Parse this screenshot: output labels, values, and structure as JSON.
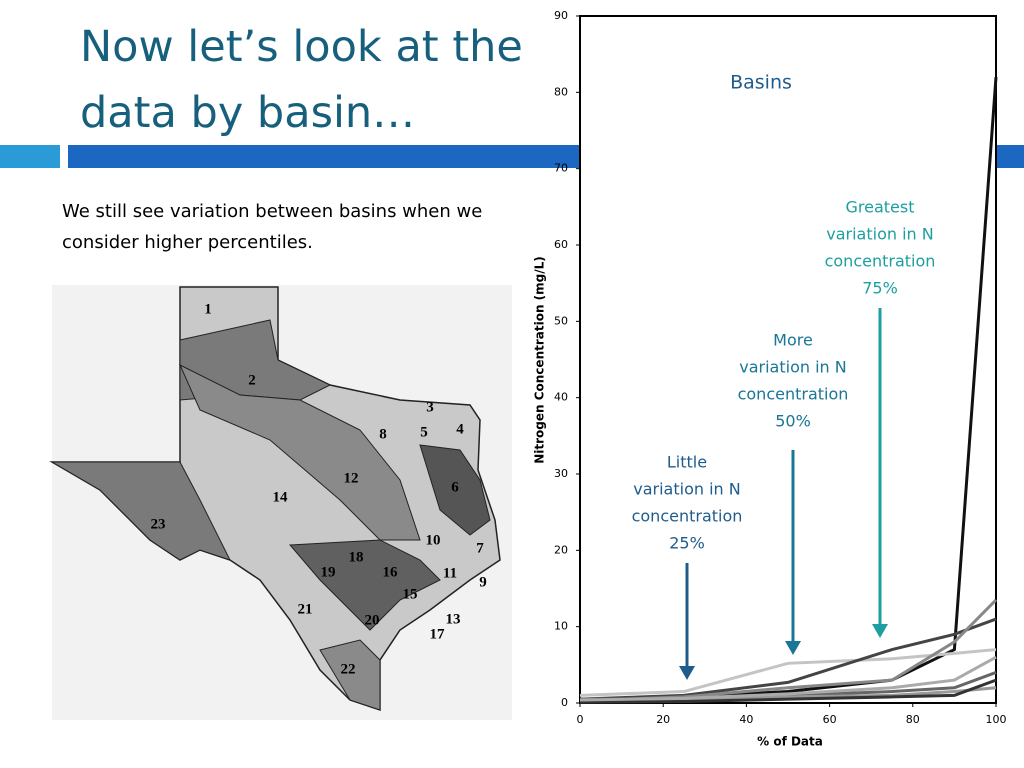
{
  "slide": {
    "title": "Now let’s look at the data by basin…",
    "body": "We still see variation between basins when we consider higher percentiles.",
    "map": {
      "labels": [
        "1",
        "2",
        "3",
        "4",
        "5",
        "6",
        "7",
        "8",
        "9",
        "10",
        "11",
        "12",
        "13",
        "14",
        "15",
        "16",
        "17",
        "18",
        "19",
        "20",
        "21",
        "22",
        "23"
      ]
    }
  },
  "chart_data": {
    "type": "line",
    "title": "Basins",
    "x_label": "% of Data",
    "y_label": "Nitrogen Concentration (mg/L)",
    "x": [
      0,
      25,
      50,
      75,
      90,
      100
    ],
    "series": [
      {
        "color": "#111111",
        "values": [
          0.3,
          0.8,
          1.5,
          3,
          7,
          82
        ]
      },
      {
        "color": "#c4c4c4",
        "values": [
          1,
          1.5,
          5.2,
          5.8,
          6.5,
          7
        ]
      },
      {
        "color": "#444444",
        "values": [
          0.5,
          1,
          2.7,
          7,
          9,
          11
        ]
      },
      {
        "color": "#888888",
        "values": [
          0.3,
          0.8,
          2,
          3,
          8,
          13.5
        ]
      },
      {
        "color": "#666666",
        "values": [
          0.5,
          0.5,
          1,
          1.5,
          2,
          4
        ]
      },
      {
        "color": "#999999",
        "values": [
          0.2,
          0.3,
          0.8,
          1,
          1.5,
          2
        ]
      },
      {
        "color": "#333333",
        "values": [
          0.1,
          0.2,
          0.5,
          0.8,
          1,
          3
        ]
      },
      {
        "color": "#aaaaaa",
        "values": [
          0.4,
          0.6,
          1.2,
          2,
          3,
          6
        ]
      }
    ],
    "xlim": [
      0,
      100
    ],
    "xticks": [
      0,
      20,
      40,
      60,
      80,
      100
    ],
    "ylim": [
      0,
      90
    ],
    "yticks": [
      0,
      10,
      20,
      30,
      40,
      50,
      60,
      70,
      80,
      90
    ],
    "annotations": [
      {
        "lines": [
          "Little",
          "variation in N",
          "concentration",
          "25%"
        ],
        "color": "#1f5c8c"
      },
      {
        "lines": [
          "More",
          "variation in N",
          "concentration",
          "50%"
        ],
        "color": "#1a7597"
      },
      {
        "lines": [
          "Greatest",
          "variation in N",
          "concentration",
          "75%"
        ],
        "color": "#1d9ea0"
      }
    ]
  }
}
